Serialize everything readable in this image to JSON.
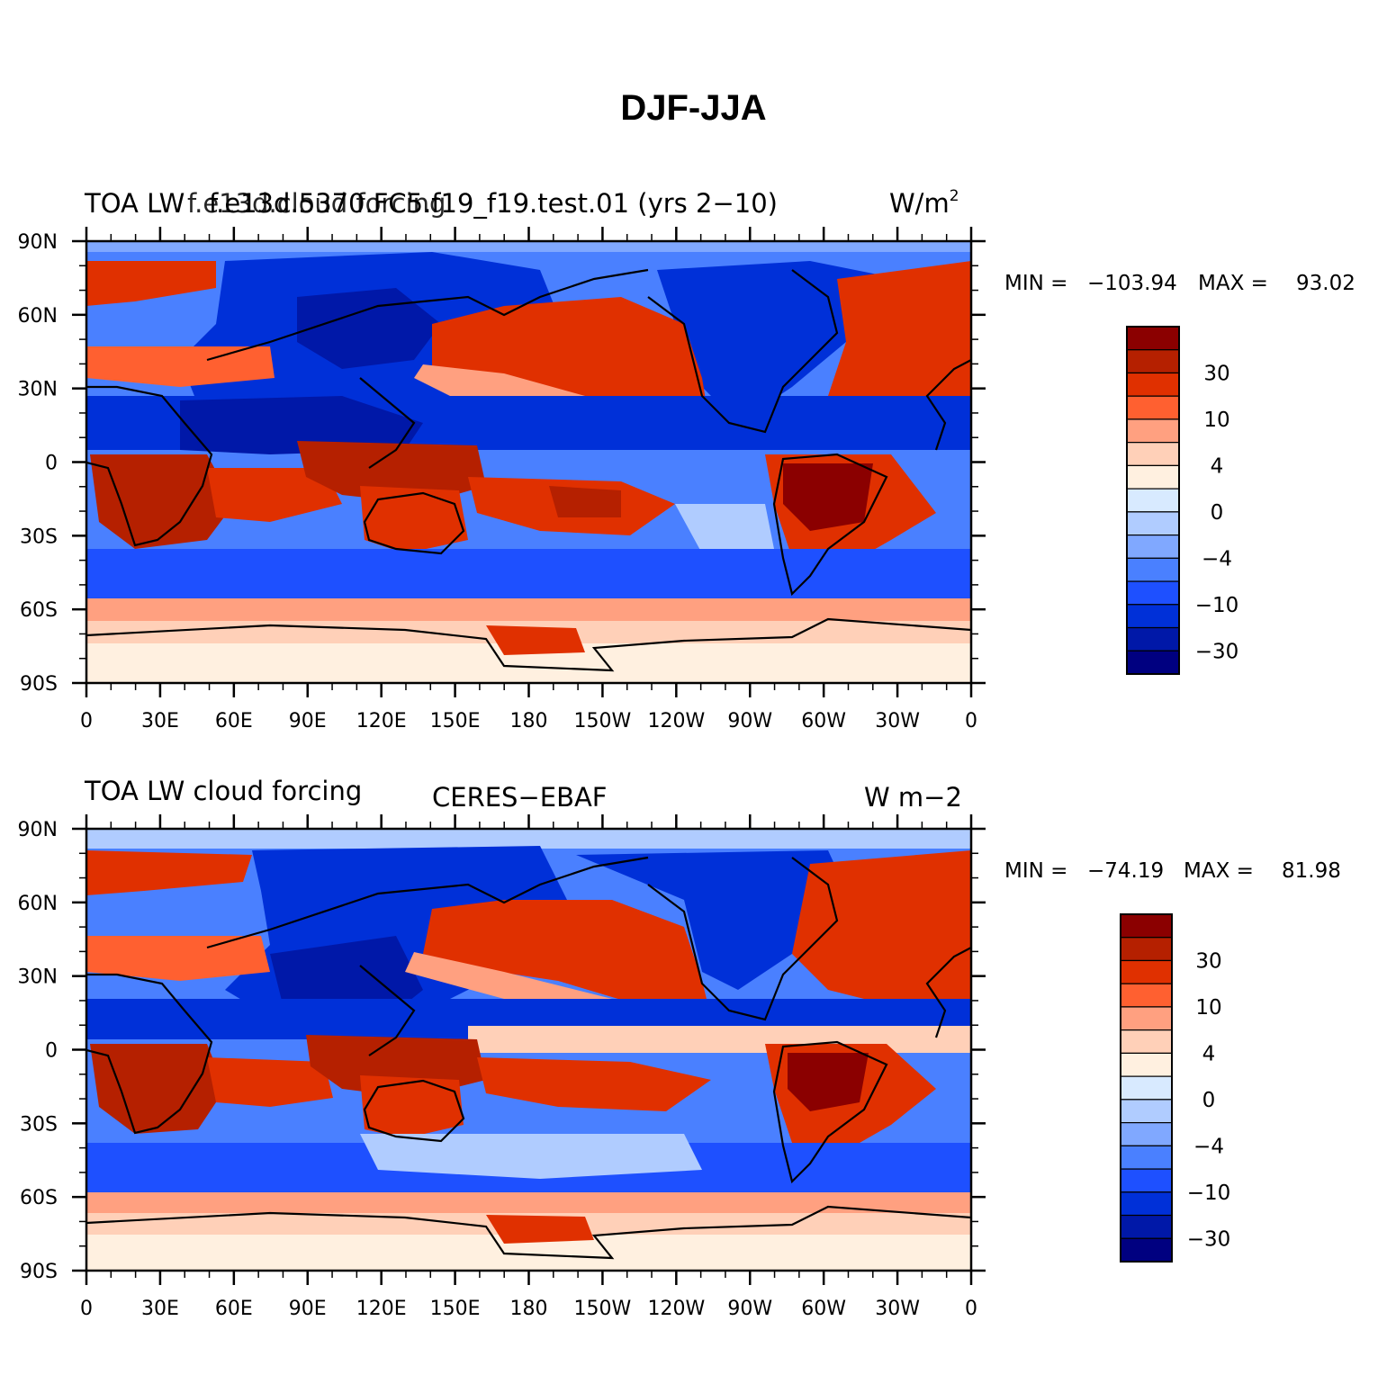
{
  "figure": {
    "title": "DJF-JJA"
  },
  "chart_data": [
    {
      "type": "heatmap",
      "variable": "TOA LW cloud forcing",
      "left_title": "TOA LW",
      "overlap_text": "f.e13d.cloud forcing",
      "center_title": "f.e13d.5370.FC5.f19_f19.test.01 (yrs 2−10)",
      "units": "W/m",
      "units_sup": "2",
      "min_label": "MIN =",
      "min_value": "−103.94",
      "max_label": "MAX =",
      "max_value": "93.02",
      "xticks": [
        "0",
        "30E",
        "60E",
        "90E",
        "120E",
        "150E",
        "180",
        "150W",
        "120W",
        "90W",
        "60W",
        "30W",
        "0"
      ],
      "yticks": [
        "90N",
        "60N",
        "30N",
        "0",
        "30S",
        "60S",
        "90S"
      ],
      "colorbar_labels": [
        "30",
        "10",
        "4",
        "0",
        "−4",
        "−10",
        "−30"
      ],
      "colorbar_colors": [
        "#8b0000",
        "#b52000",
        "#e03000",
        "#ff6030",
        "#ffa080",
        "#ffd0b8",
        "#fff0e0",
        "#d8eaff",
        "#b0ccff",
        "#80a8ff",
        "#4a80ff",
        "#1e50ff",
        "#0030d8",
        "#0018a8",
        "#000080"
      ]
    },
    {
      "type": "heatmap",
      "variable": "TOA LW cloud forcing",
      "left_title": "TOA LW cloud forcing",
      "center_title": "CERES−EBAF",
      "units": "W m−2",
      "min_label": "MIN =",
      "min_value": "−74.19",
      "max_label": "MAX =",
      "max_value": "81.98",
      "xticks": [
        "0",
        "30E",
        "60E",
        "90E",
        "120E",
        "150E",
        "180",
        "150W",
        "120W",
        "90W",
        "60W",
        "30W",
        "0"
      ],
      "yticks": [
        "90N",
        "60N",
        "30N",
        "0",
        "30S",
        "60S",
        "90S"
      ],
      "colorbar_labels": [
        "30",
        "10",
        "4",
        "0",
        "−4",
        "−10",
        "−30"
      ],
      "colorbar_colors": [
        "#8b0000",
        "#b52000",
        "#e03000",
        "#ff6030",
        "#ffa080",
        "#ffd0b8",
        "#fff0e0",
        "#d8eaff",
        "#b0ccff",
        "#80a8ff",
        "#4a80ff",
        "#1e50ff",
        "#0030d8",
        "#0018a8",
        "#000080"
      ]
    }
  ]
}
